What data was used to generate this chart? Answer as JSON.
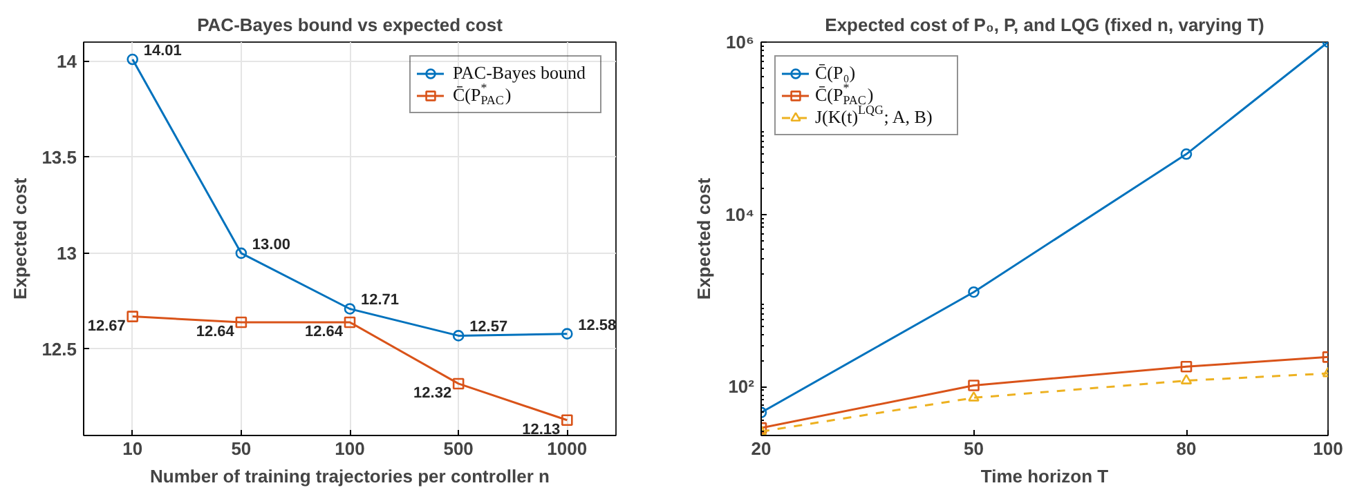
{
  "chart_data": [
    {
      "type": "line",
      "title": "PAC-Bayes bound vs expected cost",
      "xlabel": "Number of training trajectories per controller n",
      "ylabel": "Expected cost",
      "categories": [
        "10",
        "50",
        "100",
        "500",
        "1000"
      ],
      "ylim": [
        12.05,
        14.1
      ],
      "yticks": [
        12.5,
        13,
        13.5,
        14
      ],
      "grid": true,
      "legend": "top right",
      "data_labels": true,
      "series": [
        {
          "name": "PAC-Bayes bound",
          "color": "#0072bd",
          "marker": "circle",
          "line_style": "solid",
          "values": [
            14.01,
            13.0,
            12.71,
            12.57,
            12.58
          ],
          "value_labels": [
            "14.01",
            "13.00",
            "12.71",
            "12.57",
            "12.58"
          ]
        },
        {
          "name": "C̄(P$^{*}$$_{PAC}$)",
          "color": "#d95319",
          "marker": "square",
          "line_style": "solid",
          "values": [
            12.67,
            12.64,
            12.64,
            12.32,
            12.13
          ],
          "value_labels": [
            "12.67",
            "12.64",
            "12.64",
            "12.32",
            "12.13"
          ]
        }
      ]
    },
    {
      "type": "line",
      "title": "Expected cost of P₀, P, and LQG (fixed n, varying T)",
      "xlabel": "Time horizon T",
      "ylabel": "Expected cost",
      "x": [
        20,
        50,
        80,
        100
      ],
      "xlim": [
        20,
        100
      ],
      "xticks": [
        20,
        50,
        80,
        100
      ],
      "ylim": [
        27,
        1000000
      ],
      "yticks": [
        {
          "value": 100,
          "label": "10²"
        },
        {
          "value": 10000,
          "label": "10⁴"
        },
        {
          "value": 1000000,
          "label": "10⁶"
        }
      ],
      "log": "y",
      "grid": false,
      "legend": "top left",
      "series": [
        {
          "name": "C̄(P₀)",
          "color": "#0072bd",
          "marker": "circle",
          "line_style": "solid",
          "values": [
            50,
            1250,
            50000,
            1000000
          ]
        },
        {
          "name": "C̄(P$^{*}$$_{PAC}$)",
          "color": "#d95319",
          "marker": "square",
          "line_style": "solid",
          "values": [
            33,
            103,
            170,
            220
          ]
        },
        {
          "name": "J(K(t)$^{LQG}$; A, B)",
          "color": "#edb120",
          "marker": "triangle",
          "line_style": "dashed",
          "values": [
            30,
            74,
            117,
            142
          ]
        }
      ]
    }
  ]
}
